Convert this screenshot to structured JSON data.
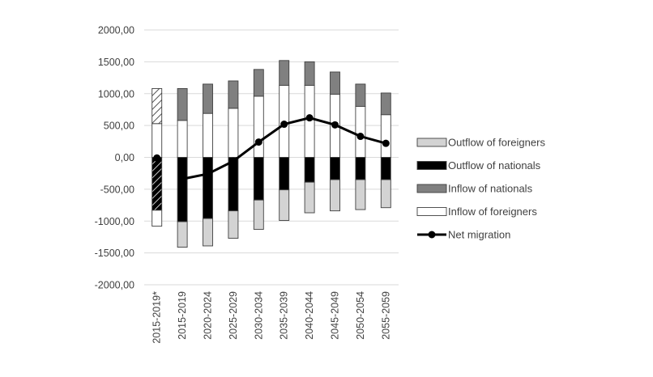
{
  "chart_data": {
    "type": "bar",
    "stacked": true,
    "categories": [
      "2015-2019*",
      "2015-2019",
      "2020-2024",
      "2025-2029",
      "2030-2034",
      "2035-2039",
      "2040-2044",
      "2045-2049",
      "2050-2054",
      "2055-2059"
    ],
    "y_ticks": [
      "2000,00",
      "1500,00",
      "1000,00",
      "500,00",
      "0,00",
      "-500,00",
      "-1000,00",
      "-1500,00",
      "-2000,00"
    ],
    "ylim": [
      -2000,
      2000
    ],
    "series": [
      {
        "name": "Outflow of foreigners",
        "color": "#d3d3d3",
        "values": [
          -250,
          -400,
          -430,
          -430,
          -460,
          -480,
          -480,
          -490,
          -470,
          -440
        ]
      },
      {
        "name": "Outflow of nationals",
        "color": "#000000",
        "values": [
          -830,
          -1010,
          -960,
          -840,
          -670,
          -510,
          -390,
          -350,
          -350,
          -350
        ]
      },
      {
        "name": "Inflow of nationals",
        "color": "#808080",
        "values": [
          550,
          500,
          460,
          430,
          420,
          390,
          370,
          350,
          350,
          340
        ]
      },
      {
        "name": "Inflow of foreigners",
        "color": "#ffffff",
        "values": [
          530,
          580,
          690,
          770,
          960,
          1130,
          1130,
          990,
          800,
          670
        ]
      }
    ],
    "line": {
      "name": "Net migration",
      "values": [
        -10,
        -340,
        -260,
        -60,
        240,
        520,
        620,
        510,
        330,
        220
      ]
    },
    "hatched_first_category": true,
    "grid": true,
    "legend_position": "right"
  }
}
